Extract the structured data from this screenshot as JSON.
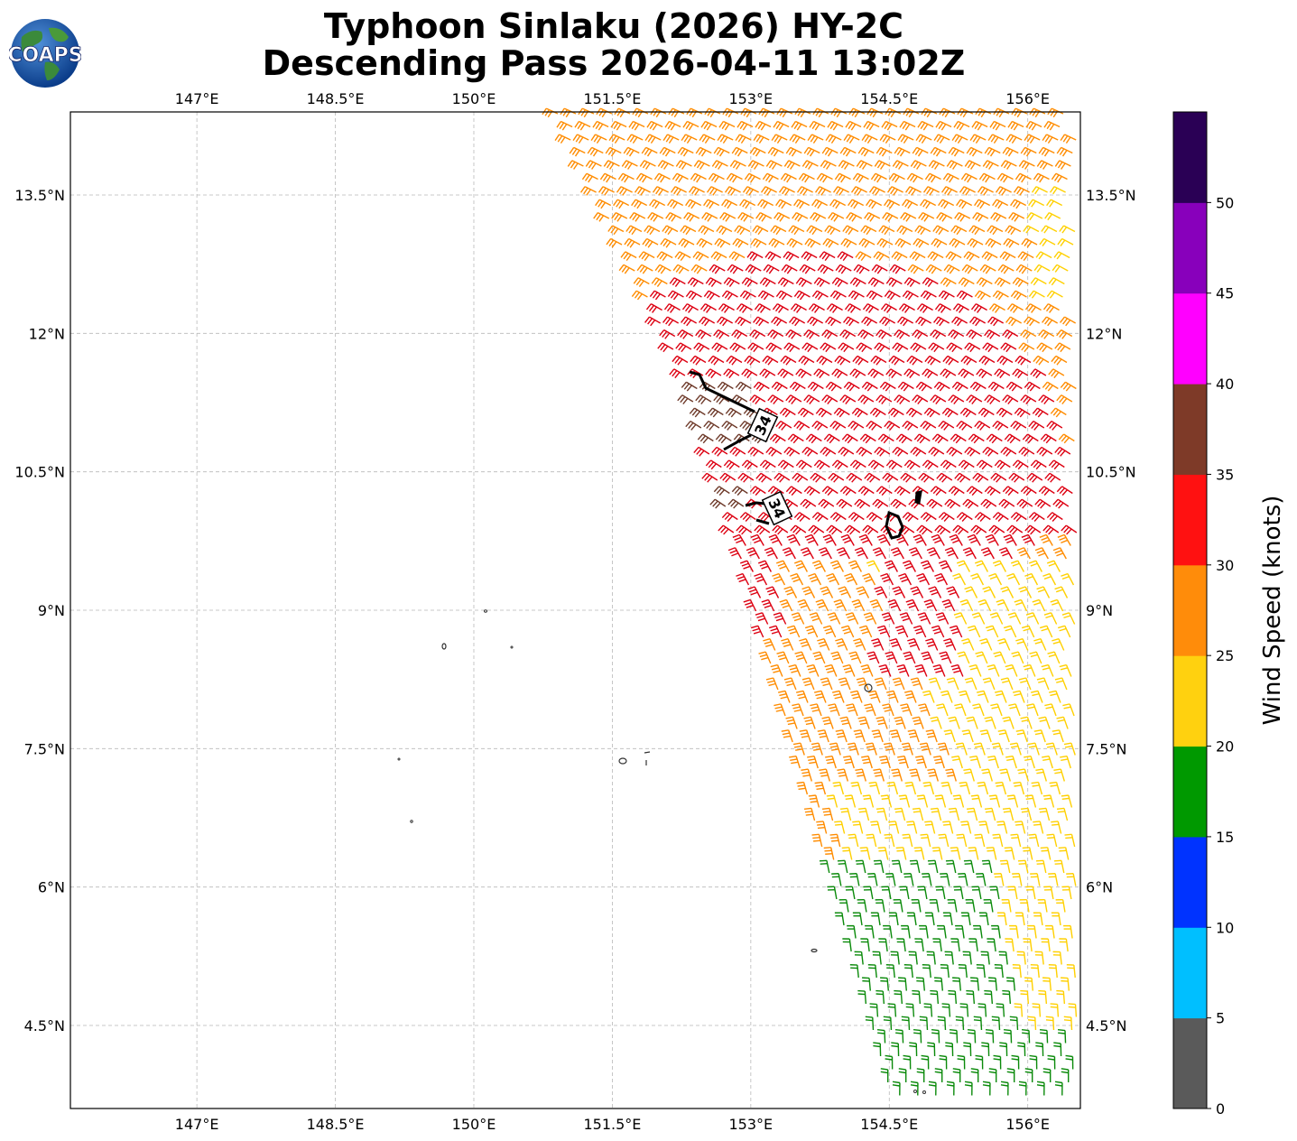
{
  "title": {
    "line1": "Typhoon Sinlaku (2026) HY-2C",
    "line2": "Descending Pass 2026-04-11 13:02Z"
  },
  "logo": {
    "text": "COAPS"
  },
  "axes": {
    "lon_labels": [
      "147°E",
      "148.5°E",
      "150°E",
      "151.5°E",
      "153°E",
      "154.5°E",
      "156°E"
    ],
    "lon_values": [
      147,
      148.5,
      150,
      151.5,
      153,
      154.5,
      156
    ],
    "lat_labels": [
      "13.5°N",
      "12°N",
      "10.5°N",
      "9°N",
      "7.5°N",
      "6°N",
      "4.5°N"
    ],
    "lat_values": [
      13.5,
      12,
      10.5,
      9,
      7.5,
      6,
      4.5
    ],
    "lon_range": [
      145.63,
      156.57
    ],
    "lat_range": [
      3.6,
      14.4
    ],
    "grid": true
  },
  "colorbar": {
    "label": "Wind Speed (knots)",
    "ticks": [
      "0",
      "5",
      "10",
      "15",
      "20",
      "25",
      "30",
      "35",
      "40",
      "45",
      "50"
    ],
    "bins": [
      {
        "min": 0,
        "max": 5,
        "color": "#5a5a5a"
      },
      {
        "min": 5,
        "max": 10,
        "color": "#00bfff"
      },
      {
        "min": 10,
        "max": 15,
        "color": "#0033ff"
      },
      {
        "min": 15,
        "max": 20,
        "color": "#009900"
      },
      {
        "min": 20,
        "max": 25,
        "color": "#ffd10f"
      },
      {
        "min": 25,
        "max": 30,
        "color": "#ff8c0a"
      },
      {
        "min": 30,
        "max": 35,
        "color": "#ff1111"
      },
      {
        "min": 35,
        "max": 40,
        "color": "#7e3a28"
      },
      {
        "min": 40,
        "max": 45,
        "color": "#ff00ff"
      },
      {
        "min": 45,
        "max": 50,
        "color": "#8800bb"
      },
      {
        "min": 50,
        "max": 55,
        "color": "#2a0055"
      }
    ]
  },
  "contours": [
    {
      "label": "34"
    },
    {
      "label": "34"
    }
  ],
  "barb_colors": {
    "green": "#0a8a0a",
    "yellow": "#ffd000",
    "orange": "#ff8c00",
    "red": "#dd0011",
    "brown": "#6e3a2a"
  }
}
